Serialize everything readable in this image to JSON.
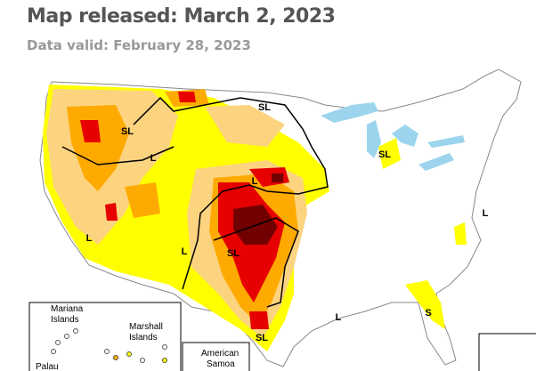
{
  "header": {
    "title": "Map released: March 2, 2023",
    "subtitle": "Data valid: February 28, 2023"
  },
  "map": {
    "labels": [
      "SL",
      "SL",
      "L",
      "L",
      "L",
      "L",
      "SL",
      "SL",
      "L",
      "L",
      "S",
      "SL"
    ]
  },
  "insets": [
    {
      "lines": [
        "Mariana",
        "Islands"
      ]
    },
    {
      "lines": [
        "Marshall",
        "Islands"
      ]
    },
    {
      "lines": [
        "American",
        "Samoa"
      ]
    },
    {
      "lines": [
        "Palau"
      ]
    }
  ]
}
